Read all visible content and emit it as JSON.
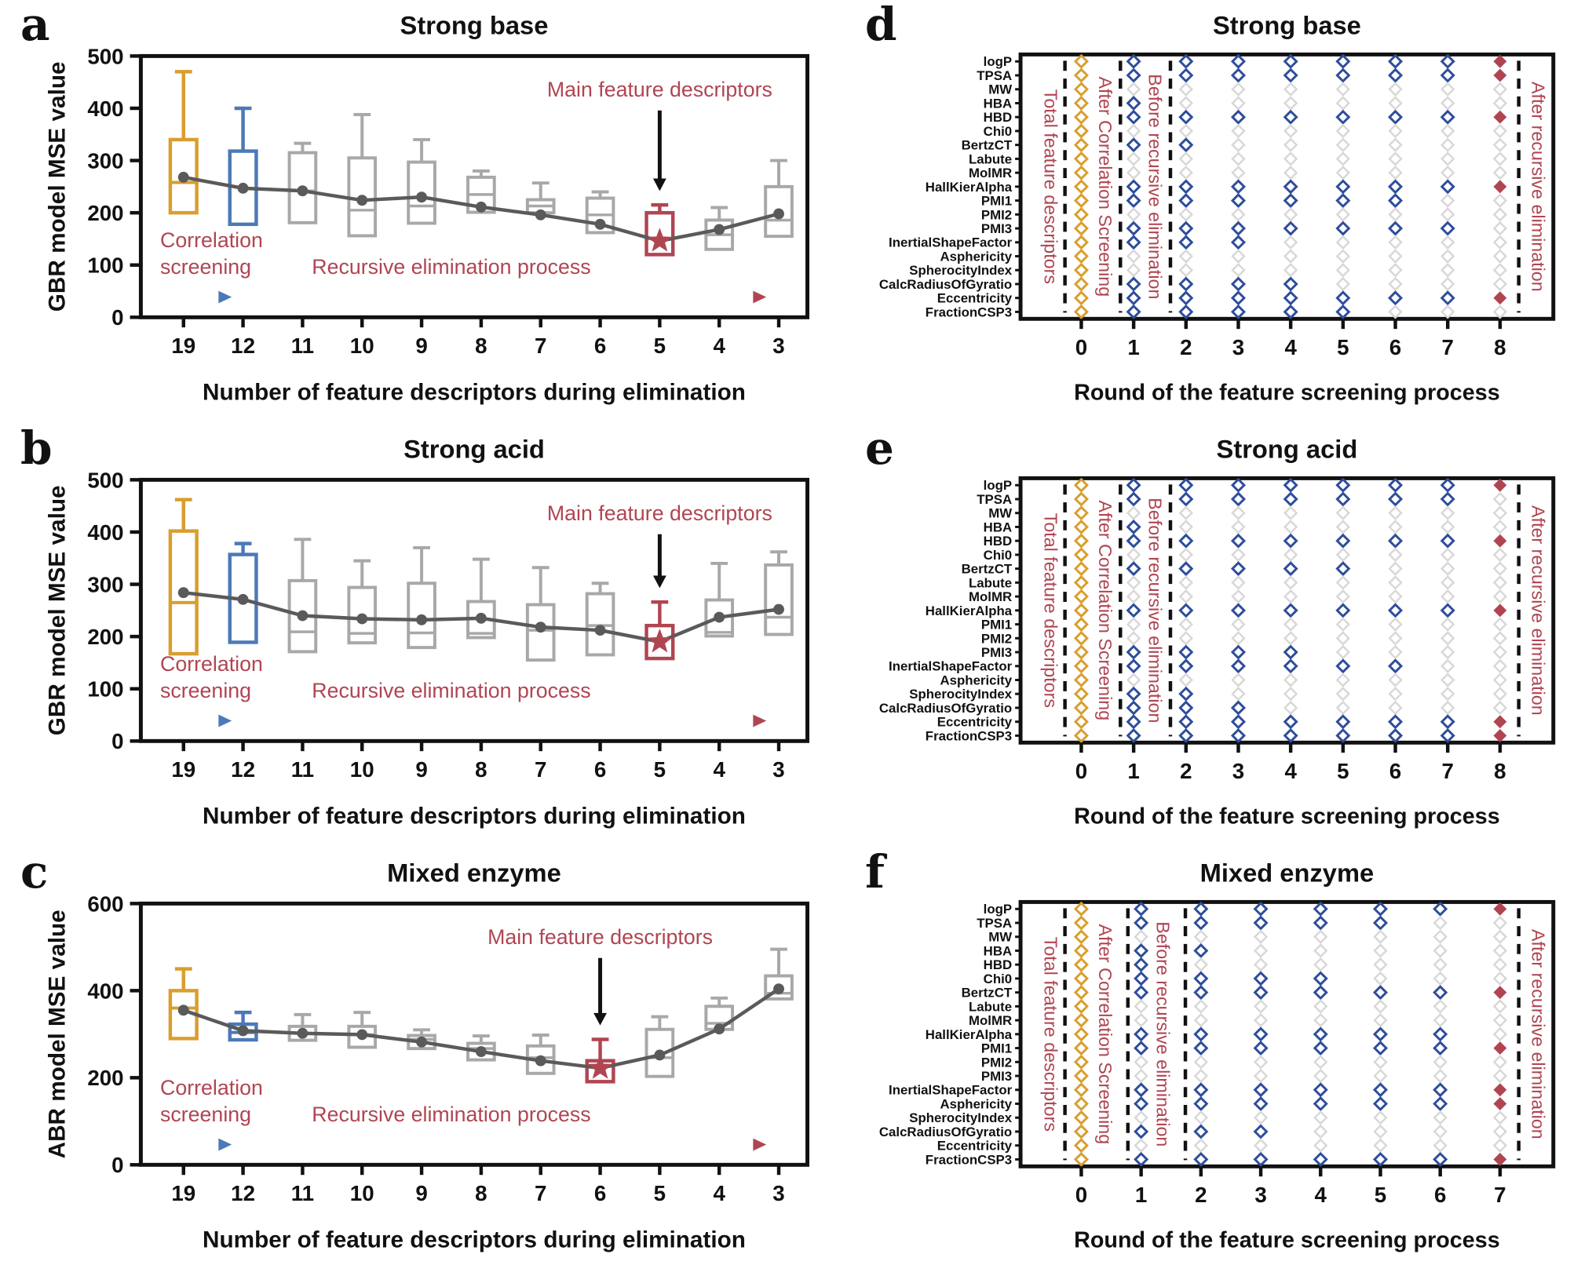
{
  "colors": {
    "gold": "#D99E2E",
    "blue_box": "#4C79B8",
    "blue_diamond": "#2E4D9B",
    "red": "#B04552",
    "gray_box": "#A8A8A8",
    "gray_diamond": "#D8D8D8",
    "mean_line": "#5A5A5A",
    "black": "#111111"
  },
  "panel_letters": {
    "a": "a",
    "b": "b",
    "c": "c",
    "d": "d",
    "e": "e",
    "f": "f"
  },
  "chart_data": [
    {
      "panel": "a",
      "type": "boxplot",
      "title": "Strong base",
      "xlabel": "Number of feature descriptors during elimination",
      "ylabel": "GBR model MSE value",
      "ylim": [
        0,
        500
      ],
      "yticks": [
        0,
        100,
        200,
        300,
        400,
        500
      ],
      "categories": [
        "19",
        "12",
        "11",
        "10",
        "9",
        "8",
        "7",
        "6",
        "5",
        "4",
        "3"
      ],
      "box_styles": [
        "gold",
        "blue",
        "gray",
        "gray",
        "gray",
        "gray",
        "gray",
        "gray",
        "red",
        "gray",
        "gray"
      ],
      "star_index": 8,
      "boxes": [
        {
          "whisker_hi": 470,
          "q3": 340,
          "median": 258,
          "q1": 200,
          "mean": 268
        },
        {
          "whisker_hi": 400,
          "q3": 318,
          "median": null,
          "q1": 178,
          "mean": 247
        },
        {
          "whisker_hi": 333,
          "q3": 315,
          "median": 242,
          "q1": 181,
          "mean": 242
        },
        {
          "whisker_hi": 388,
          "q3": 305,
          "median": 205,
          "q1": 156,
          "mean": 224
        },
        {
          "whisker_hi": 340,
          "q3": 297,
          "median": 213,
          "q1": 180,
          "mean": 230
        },
        {
          "whisker_hi": 280,
          "q3": 268,
          "median": 235,
          "q1": 201,
          "mean": 211
        },
        {
          "whisker_hi": 257,
          "q3": 225,
          "median": 213,
          "q1": 200,
          "mean": 196
        },
        {
          "whisker_hi": 240,
          "q3": 228,
          "median": 196,
          "q1": 162,
          "mean": 178
        },
        {
          "whisker_hi": 215,
          "q3": 200,
          "median": null,
          "q1": 120,
          "mean": 146
        },
        {
          "whisker_hi": 210,
          "q3": 186,
          "median": 158,
          "q1": 130,
          "mean": 168
        },
        {
          "whisker_hi": 300,
          "q3": 250,
          "median": 186,
          "q1": 155,
          "mean": 198
        }
      ],
      "annotations": {
        "main_feature": "Main feature descriptors",
        "correlation_line1": "Correlation",
        "correlation_line2": "screening",
        "recursive": "Recursive elimination process"
      }
    },
    {
      "panel": "b",
      "type": "boxplot",
      "title": "Strong acid",
      "xlabel": "Number of feature descriptors during elimination",
      "ylabel": "GBR model MSE value",
      "ylim": [
        0,
        500
      ],
      "yticks": [
        0,
        100,
        200,
        300,
        400,
        500
      ],
      "categories": [
        "19",
        "12",
        "11",
        "10",
        "9",
        "8",
        "7",
        "6",
        "5",
        "4",
        "3"
      ],
      "box_styles": [
        "gold",
        "blue",
        "gray",
        "gray",
        "gray",
        "gray",
        "gray",
        "gray",
        "red",
        "gray",
        "gray"
      ],
      "star_index": 8,
      "boxes": [
        {
          "whisker_hi": 462,
          "q3": 402,
          "median": 265,
          "q1": 167,
          "mean": 284
        },
        {
          "whisker_hi": 378,
          "q3": 357,
          "median": null,
          "q1": 189,
          "mean": 271
        },
        {
          "whisker_hi": 386,
          "q3": 307,
          "median": 209,
          "q1": 171,
          "mean": 240
        },
        {
          "whisker_hi": 345,
          "q3": 294,
          "median": 206,
          "q1": 188,
          "mean": 234
        },
        {
          "whisker_hi": 370,
          "q3": 302,
          "median": 207,
          "q1": 179,
          "mean": 232
        },
        {
          "whisker_hi": 348,
          "q3": 267,
          "median": 206,
          "q1": 198,
          "mean": 235
        },
        {
          "whisker_hi": 332,
          "q3": 261,
          "median": 212,
          "q1": 155,
          "mean": 218
        },
        {
          "whisker_hi": 302,
          "q3": 282,
          "median": 221,
          "q1": 165,
          "mean": 212
        },
        {
          "whisker_hi": 266,
          "q3": 221,
          "median": null,
          "q1": 158,
          "mean": 190
        },
        {
          "whisker_hi": 340,
          "q3": 270,
          "median": 208,
          "q1": 201,
          "mean": 237
        },
        {
          "whisker_hi": 362,
          "q3": 337,
          "median": 237,
          "q1": 204,
          "mean": 252
        }
      ],
      "annotations": {
        "main_feature": "Main feature descriptors",
        "correlation_line1": "Correlation",
        "correlation_line2": "screening",
        "recursive": "Recursive elimination process"
      }
    },
    {
      "panel": "c",
      "type": "boxplot",
      "title": "Mixed enzyme",
      "xlabel": "Number of feature descriptors during elimination",
      "ylabel": "ABR model MSE value",
      "ylim": [
        0,
        600
      ],
      "yticks": [
        0,
        200,
        400,
        600
      ],
      "categories": [
        "19",
        "12",
        "11",
        "10",
        "9",
        "8",
        "7",
        "6",
        "5",
        "4",
        "3"
      ],
      "box_styles": [
        "gold",
        "blue",
        "gray",
        "gray",
        "gray",
        "gray",
        "gray",
        "red",
        "gray",
        "gray",
        "gray"
      ],
      "star_index": 7,
      "boxes": [
        {
          "whisker_hi": 450,
          "q3": 400,
          "median": 360,
          "q1": 290,
          "mean": 355
        },
        {
          "whisker_hi": 350,
          "q3": 323,
          "median": 304,
          "q1": 287,
          "mean": 308
        },
        {
          "whisker_hi": 345,
          "q3": 318,
          "median": 302,
          "q1": 286,
          "mean": 302
        },
        {
          "whisker_hi": 350,
          "q3": 318,
          "median": 299,
          "q1": 270,
          "mean": 299
        },
        {
          "whisker_hi": 310,
          "q3": 297,
          "median": 288,
          "q1": 267,
          "mean": 282
        },
        {
          "whisker_hi": 296,
          "q3": 279,
          "median": 267,
          "q1": 241,
          "mean": 260
        },
        {
          "whisker_hi": 298,
          "q3": 273,
          "median": 246,
          "q1": 210,
          "mean": 239
        },
        {
          "whisker_hi": 288,
          "q3": 239,
          "median": null,
          "q1": 191,
          "mean": 222
        },
        {
          "whisker_hi": 340,
          "q3": 311,
          "median": 246,
          "q1": 203,
          "mean": 252
        },
        {
          "whisker_hi": 383,
          "q3": 364,
          "median": 325,
          "q1": 311,
          "mean": 312
        },
        {
          "whisker_hi": 495,
          "q3": 434,
          "median": 394,
          "q1": 381,
          "mean": 404
        }
      ],
      "annotations": {
        "main_feature": "Main feature descriptors",
        "correlation_line1": "Correlation",
        "correlation_line2": "screening",
        "recursive": "Recursive elimination process"
      }
    },
    {
      "panel": "d",
      "type": "diamond_grid",
      "title": "Strong base",
      "xlabel": "Round of the feature screening process",
      "features": [
        "logP",
        "TPSA",
        "MW",
        "HBA",
        "HBD",
        "Chi0",
        "BertzCT",
        "Labute",
        "MolMR",
        "HallKierAlpha",
        "PMI1",
        "PMI2",
        "PMI3",
        "InertialShapeFactor",
        "Asphericity",
        "SpherocityIndex",
        "CalcRadiusOfGyratio",
        "Eccentricity",
        "FractionCSP3"
      ],
      "rounds": [
        "0",
        "1",
        "2",
        "3",
        "4",
        "5",
        "6",
        "7",
        "8"
      ],
      "round_styles": [
        "gold",
        "blue",
        "blue",
        "blue",
        "blue",
        "blue",
        "blue",
        "blue",
        "red"
      ],
      "active_by_round": [
        [
          0,
          1,
          2,
          3,
          4,
          5,
          6,
          7,
          8,
          9,
          10,
          11,
          12,
          13,
          14,
          15,
          16,
          17,
          18
        ],
        [
          0,
          1,
          3,
          4,
          6,
          9,
          10,
          12,
          13,
          16,
          17,
          18
        ],
        [
          0,
          1,
          4,
          6,
          9,
          10,
          12,
          13,
          16,
          17,
          18
        ],
        [
          0,
          1,
          4,
          9,
          10,
          12,
          13,
          16,
          17,
          18
        ],
        [
          0,
          1,
          4,
          9,
          10,
          12,
          16,
          17,
          18
        ],
        [
          0,
          1,
          4,
          9,
          10,
          12,
          17,
          18
        ],
        [
          0,
          1,
          4,
          9,
          10,
          12,
          17
        ],
        [
          0,
          1,
          4,
          9,
          12,
          17
        ],
        [
          0,
          1,
          4,
          9,
          17
        ]
      ],
      "stage_labels": {
        "total": "Total feature descriptors",
        "after_corr": "After Correlation Screening",
        "before_rec": "Before recursive elimination",
        "after_rec": "After recursive elimination"
      }
    },
    {
      "panel": "e",
      "type": "diamond_grid",
      "title": "Strong acid",
      "xlabel": "Round of the feature screening process",
      "features": [
        "logP",
        "TPSA",
        "MW",
        "HBA",
        "HBD",
        "Chi0",
        "BertzCT",
        "Labute",
        "MolMR",
        "HallKierAlpha",
        "PMI1",
        "PMI2",
        "PMI3",
        "InertialShapeFactor",
        "Asphericity",
        "SpherocityIndex",
        "CalcRadiusOfGyratio",
        "Eccentricity",
        "FractionCSP3"
      ],
      "rounds": [
        "0",
        "1",
        "2",
        "3",
        "4",
        "5",
        "6",
        "7",
        "8"
      ],
      "round_styles": [
        "gold",
        "blue",
        "blue",
        "blue",
        "blue",
        "blue",
        "blue",
        "blue",
        "red"
      ],
      "active_by_round": [
        [
          0,
          1,
          2,
          3,
          4,
          5,
          6,
          7,
          8,
          9,
          10,
          11,
          12,
          13,
          14,
          15,
          16,
          17,
          18
        ],
        [
          0,
          1,
          3,
          4,
          6,
          9,
          12,
          13,
          15,
          16,
          17,
          18
        ],
        [
          0,
          1,
          4,
          6,
          9,
          12,
          13,
          15,
          16,
          17,
          18
        ],
        [
          0,
          1,
          4,
          6,
          9,
          12,
          13,
          16,
          17,
          18
        ],
        [
          0,
          1,
          4,
          6,
          9,
          12,
          13,
          17,
          18
        ],
        [
          0,
          1,
          4,
          6,
          9,
          13,
          17,
          18
        ],
        [
          0,
          1,
          4,
          9,
          13,
          17,
          18
        ],
        [
          0,
          1,
          4,
          9,
          17,
          18
        ],
        [
          0,
          4,
          9,
          17,
          18
        ]
      ],
      "stage_labels": {
        "total": "Total feature descriptors",
        "after_corr": "After Correlation Screening",
        "before_rec": "Before recursive elimination",
        "after_rec": "After recursive elimination"
      }
    },
    {
      "panel": "f",
      "type": "diamond_grid",
      "title": "Mixed enzyme",
      "xlabel": "Round of the feature screening process",
      "features": [
        "logP",
        "TPSA",
        "MW",
        "HBA",
        "HBD",
        "Chi0",
        "BertzCT",
        "Labute",
        "MolMR",
        "HallKierAlpha",
        "PMI1",
        "PMI2",
        "PMI3",
        "InertialShapeFactor",
        "Asphericity",
        "SpherocityIndex",
        "CalcRadiusOfGyratio",
        "Eccentricity",
        "FractionCSP3"
      ],
      "rounds": [
        "0",
        "1",
        "2",
        "3",
        "4",
        "5",
        "6",
        "7"
      ],
      "round_styles": [
        "gold",
        "blue",
        "blue",
        "blue",
        "blue",
        "blue",
        "blue",
        "red"
      ],
      "active_by_round": [
        [
          0,
          1,
          2,
          3,
          4,
          5,
          6,
          7,
          8,
          9,
          10,
          11,
          12,
          13,
          14,
          15,
          16,
          17,
          18
        ],
        [
          0,
          1,
          3,
          4,
          5,
          6,
          9,
          10,
          13,
          14,
          16,
          18
        ],
        [
          0,
          1,
          3,
          5,
          6,
          9,
          10,
          13,
          14,
          16,
          18
        ],
        [
          0,
          1,
          5,
          6,
          9,
          10,
          13,
          14,
          16,
          18
        ],
        [
          0,
          1,
          5,
          6,
          9,
          10,
          13,
          14,
          18
        ],
        [
          0,
          1,
          6,
          9,
          10,
          13,
          14,
          18
        ],
        [
          0,
          6,
          9,
          10,
          13,
          14,
          18
        ],
        [
          0,
          6,
          10,
          13,
          14,
          18
        ]
      ],
      "stage_labels": {
        "total": "Total feature descriptors",
        "after_corr": "After Correlation Screening",
        "before_rec": "Before recursive elimination",
        "after_rec": "After recursive elimination"
      }
    }
  ]
}
